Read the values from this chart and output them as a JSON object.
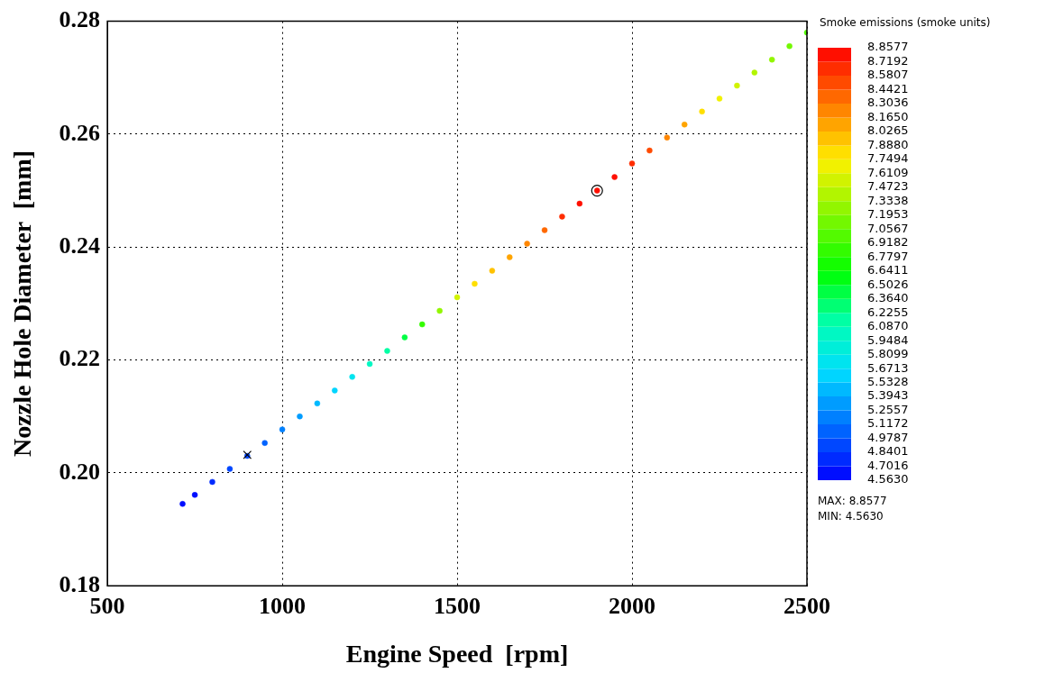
{
  "chart_data": {
    "type": "scatter",
    "xlabel": "Engine Speed  [rpm]",
    "ylabel": "Nozzle Hole Diameter  [mm]",
    "clabel": "Smoke emissions (smoke units)",
    "xlim": [
      500,
      2500
    ],
    "xticks": [
      500,
      1000,
      1500,
      2000,
      2500
    ],
    "ylim": [
      0.18,
      0.28
    ],
    "yticks": [
      {
        "value": 0.18,
        "label": "0.18"
      },
      {
        "value": 0.2,
        "label": "0.20"
      },
      {
        "value": 0.22,
        "label": "0.22"
      },
      {
        "value": 0.24,
        "label": "0.24"
      },
      {
        "value": 0.26,
        "label": "0.26"
      },
      {
        "value": 0.28,
        "label": "0.28"
      }
    ],
    "grid": true,
    "legend": false,
    "series": [
      {
        "marker": "circle",
        "colors": [
          "#000eff",
          "#000eff",
          "#002bff",
          "#0047ff",
          "#0047ff",
          "#0063ff",
          "#0080ff",
          "#009cff",
          "#00b9ff",
          "#00d5ff",
          "#00e4ef",
          "#00f8c3",
          "#00ffa4",
          "#00ff43",
          "#33fc00",
          "#92f600",
          "#d1f300",
          "#ffdf00",
          "#ffc200",
          "#ffa400",
          "#ff8600",
          "#ff6800",
          "#ff2d00",
          "#ff0f00",
          "#ff0f00",
          "#ff0f00",
          "#ff2d00",
          "#ff4a00",
          "#ff8600",
          "#ffa400",
          "#ffdf00",
          "#f1f100",
          "#d1f300",
          "#b2f500",
          "#92f600",
          "#73f800",
          "#53fa00"
        ],
        "x": [
          715,
          750,
          800,
          850,
          900,
          950,
          1000,
          1050,
          1100,
          1150,
          1200,
          1250,
          1300,
          1350,
          1400,
          1450,
          1500,
          1550,
          1600,
          1650,
          1700,
          1750,
          1800,
          1850,
          1900,
          1950,
          2000,
          2050,
          2100,
          2150,
          2200,
          2250,
          2300,
          2350,
          2400,
          2450,
          2500
        ],
        "values": [
          0.1945,
          0.1961,
          0.1984,
          0.2007,
          0.203,
          0.2053,
          0.2077,
          0.21,
          0.2123,
          0.2146,
          0.217,
          0.2193,
          0.2216,
          0.224,
          0.2263,
          0.2287,
          0.2311,
          0.2335,
          0.2358,
          0.2382,
          0.2406,
          0.243,
          0.2454,
          0.2477,
          0.25,
          0.2524,
          0.2548,
          0.2571,
          0.2594,
          0.2617,
          0.264,
          0.2663,
          0.2686,
          0.2709,
          0.2732,
          0.2756,
          0.278
        ],
        "cvalues": [
          4.57,
          4.65,
          4.75,
          4.85,
          4.95,
          5.05,
          5.2,
          5.35,
          5.5,
          5.6,
          5.75,
          5.95,
          6.2,
          6.5,
          6.85,
          7.2,
          7.6,
          7.75,
          7.9,
          8.05,
          8.2,
          8.4,
          8.6,
          8.75,
          8.85,
          8.8,
          8.6,
          8.45,
          8.25,
          8.05,
          7.85,
          7.7,
          7.6,
          7.45,
          7.3,
          7.15,
          7.0
        ]
      },
      {
        "marker": "cross",
        "color": "#000000",
        "x": [
          900
        ],
        "values": [
          0.2032
        ]
      },
      {
        "marker": "circle",
        "color": "#000000",
        "x": [
          1900
        ],
        "values": [
          0.25
        ]
      }
    ],
    "clim": [
      4.563,
      8.8577
    ],
    "cticks": [
      {
        "value": 8.8577,
        "label": "8.8577"
      },
      {
        "value": 8.7192,
        "label": "8.7192"
      },
      {
        "value": 8.5807,
        "label": "8.5807"
      },
      {
        "value": 8.4421,
        "label": "8.4421"
      },
      {
        "value": 8.3036,
        "label": "8.3036"
      },
      {
        "value": 8.165,
        "label": "8.1650"
      },
      {
        "value": 8.0265,
        "label": "8.0265"
      },
      {
        "value": 7.888,
        "label": "7.8880"
      },
      {
        "value": 7.7494,
        "label": "7.7494"
      },
      {
        "value": 7.6109,
        "label": "7.6109"
      },
      {
        "value": 7.4723,
        "label": "7.4723"
      },
      {
        "value": 7.3338,
        "label": "7.3338"
      },
      {
        "value": 7.1953,
        "label": "7.1953"
      },
      {
        "value": 7.0567,
        "label": "7.0567"
      },
      {
        "value": 6.9182,
        "label": "6.9182"
      },
      {
        "value": 6.7797,
        "label": "6.7797"
      },
      {
        "value": 6.6411,
        "label": "6.6411"
      },
      {
        "value": 6.5026,
        "label": "6.5026"
      },
      {
        "value": 6.364,
        "label": "6.3640"
      },
      {
        "value": 6.2255,
        "label": "6.2255"
      },
      {
        "value": 6.087,
        "label": "6.0870"
      },
      {
        "value": 5.9484,
        "label": "5.9484"
      },
      {
        "value": 5.8099,
        "label": "5.8099"
      },
      {
        "value": 5.6713,
        "label": "5.6713"
      },
      {
        "value": 5.5328,
        "label": "5.5328"
      },
      {
        "value": 5.3943,
        "label": "5.3943"
      },
      {
        "value": 5.2557,
        "label": "5.2557"
      },
      {
        "value": 5.1172,
        "label": "5.1172"
      },
      {
        "value": 4.9787,
        "label": "4.9787"
      },
      {
        "value": 4.8401,
        "label": "4.8401"
      },
      {
        "value": 4.7016,
        "label": "4.7016"
      },
      {
        "value": 4.563,
        "label": "4.5630"
      }
    ],
    "annotations": [
      "MAX: 8.8577",
      "MIN: 4.5630"
    ]
  }
}
